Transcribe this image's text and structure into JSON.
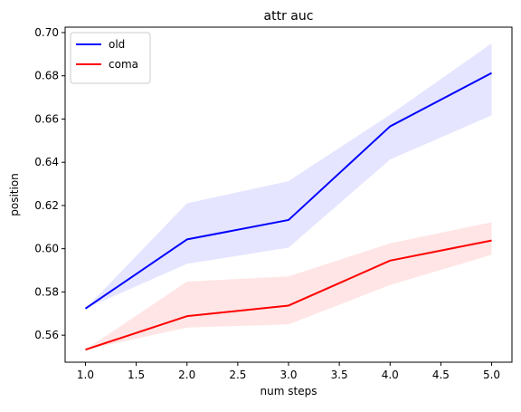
{
  "chart_data": {
    "type": "line",
    "title": "attr auc",
    "xlabel": "num steps",
    "ylabel": "position",
    "xlim": [
      0.8,
      5.2
    ],
    "ylim": [
      0.5475,
      0.7025
    ],
    "x_ticks": [
      1.0,
      1.5,
      2.0,
      2.5,
      3.0,
      3.5,
      4.0,
      4.5,
      5.0
    ],
    "x_tick_labels": [
      "1.0",
      "1.5",
      "2.0",
      "2.5",
      "3.0",
      "3.5",
      "4.0",
      "4.5",
      "5.0"
    ],
    "y_ticks": [
      0.56,
      0.58,
      0.6,
      0.62,
      0.64,
      0.66,
      0.68,
      0.7
    ],
    "y_tick_labels": [
      "0.56",
      "0.58",
      "0.60",
      "0.62",
      "0.64",
      "0.66",
      "0.68",
      "0.70"
    ],
    "legend_position": "top-left",
    "grid": false,
    "x": [
      1,
      2,
      3,
      4,
      5
    ],
    "series": [
      {
        "name": "old",
        "color": "#0000ff",
        "band_color": "#e5e5ff",
        "values": [
          0.5723,
          0.6043,
          0.6133,
          0.6566,
          0.6813
        ],
        "lower": [
          0.5723,
          0.593,
          0.6005,
          0.6413,
          0.6617
        ],
        "upper": [
          0.5723,
          0.621,
          0.6313,
          0.662,
          0.695
        ]
      },
      {
        "name": "coma",
        "color": "#ff0000",
        "band_color": "#ffe5e5",
        "values": [
          0.5533,
          0.5688,
          0.5737,
          0.5945,
          0.6038
        ],
        "lower": [
          0.5533,
          0.5635,
          0.565,
          0.5832,
          0.5972
        ],
        "upper": [
          0.5533,
          0.5848,
          0.5872,
          0.6025,
          0.6123
        ]
      }
    ]
  }
}
